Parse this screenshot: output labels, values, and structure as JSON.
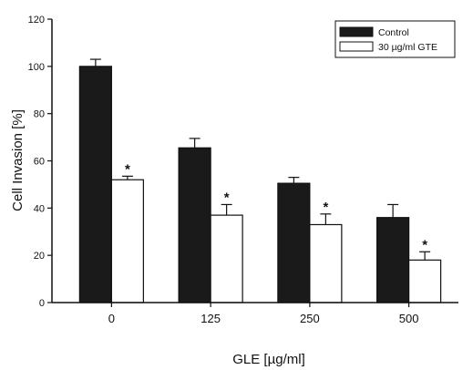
{
  "chart_data": {
    "type": "bar",
    "title": "",
    "xlabel": "GLE [µg/ml]",
    "ylabel": "Cell Invasion [%]",
    "categories": [
      "0",
      "125",
      "250",
      "500"
    ],
    "ylim": [
      0,
      120
    ],
    "yticks": [
      "0",
      "20",
      "40",
      "60",
      "80",
      "100",
      "120"
    ],
    "series": [
      {
        "name": "Control",
        "color": "#1a1a1a",
        "values": [
          100,
          65.5,
          50.5,
          36
        ],
        "errors": [
          3,
          4,
          2.5,
          5.5
        ],
        "significance": [
          "",
          "",
          "",
          ""
        ]
      },
      {
        "name": "30 µg/ml GTE",
        "color": "#ffffff",
        "values": [
          52,
          37,
          33,
          18
        ],
        "errors": [
          1.5,
          4.5,
          4.5,
          3.5
        ],
        "significance": [
          "*",
          "*",
          "*",
          "*"
        ]
      }
    ],
    "legend_position": "top-right",
    "grid": false
  }
}
